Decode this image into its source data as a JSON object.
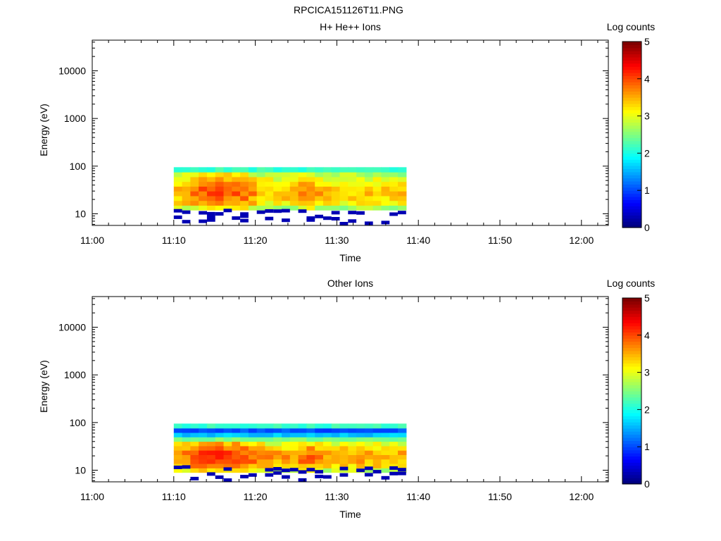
{
  "figure_title": "RPCICA151126T11.PNG",
  "chart_data": [
    {
      "type": "heatmap",
      "title": "H+ He++ Ions",
      "xlabel": "Time",
      "ylabel": "Energy (eV)",
      "x_ticks": [
        "11:00",
        "11:10",
        "11:20",
        "11:30",
        "11:40",
        "11:50",
        "12:00"
      ],
      "x_range_minutes": [
        0,
        63.3
      ],
      "y_scale": "log",
      "y_ticks": [
        "10",
        "100",
        "1000",
        "10000"
      ],
      "y_range": [
        5.7,
        44000
      ],
      "colorbar": {
        "label": "Log counts",
        "ticks": [
          "0",
          "1",
          "2",
          "3",
          "4",
          "5"
        ],
        "range": [
          0,
          5
        ],
        "colormap": "jet"
      },
      "data_time_range_minutes": [
        10,
        38.5
      ],
      "data_energy_range_ev": [
        12,
        95
      ],
      "peak_log_counts": 4.1,
      "peak_time_minutes": 14.5,
      "peak_energy_ev": 30,
      "low_energy_sparse_pixels": true,
      "core_profile": [
        2.7,
        3.1,
        3.3,
        3.4,
        3.3,
        3.2,
        3.0,
        2.7,
        2.3
      ]
    },
    {
      "type": "heatmap",
      "title": "Other Ions",
      "xlabel": "Time",
      "ylabel": "Energy (eV)",
      "x_ticks": [
        "11:00",
        "11:10",
        "11:20",
        "11:30",
        "11:40",
        "11:50",
        "12:00"
      ],
      "x_range_minutes": [
        0,
        63.3
      ],
      "y_scale": "log",
      "y_ticks": [
        "10",
        "100",
        "1000",
        "10000"
      ],
      "y_range": [
        5.7,
        44000
      ],
      "colorbar": {
        "label": "Log counts",
        "ticks": [
          "0",
          "1",
          "2",
          "3",
          "4",
          "5"
        ],
        "range": [
          0,
          5
        ],
        "colormap": "jet"
      },
      "data_time_range_minutes": [
        10,
        38.5
      ],
      "data_energy_range_ev": [
        9,
        95
      ],
      "peak_log_counts": 4.2,
      "peak_time_minutes": 14.5,
      "peak_energy_ev": 35,
      "low_energy_sparse_pixels": true,
      "core_profile": [
        2.8,
        3.3,
        3.5,
        3.6,
        3.5,
        3.3,
        3.0,
        2.5,
        1.6,
        1.0,
        0.6
      ]
    }
  ]
}
